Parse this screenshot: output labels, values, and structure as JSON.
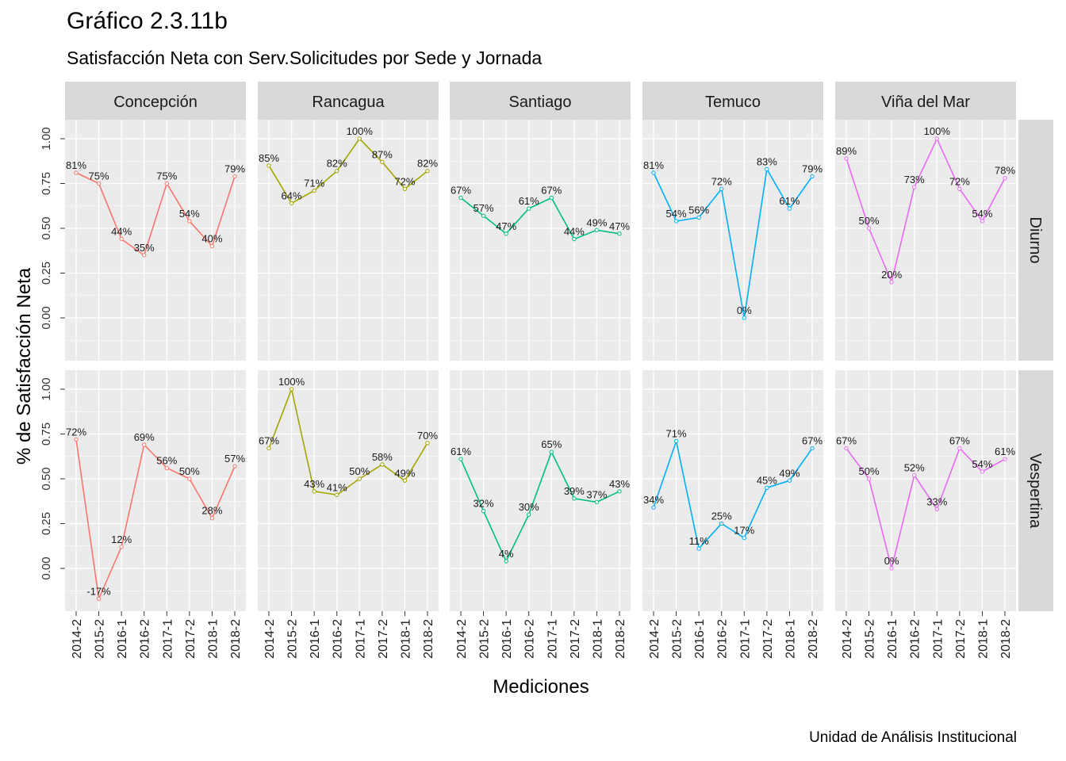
{
  "title": "Gráfico 2.3.11b",
  "subtitle": "Satisfacción Neta con Serv.Solicitudes por Sede y Jornada",
  "caption": "Unidad de Análisis Institucional",
  "chart_data": {
    "type": "line",
    "xlabel": "Mediciones",
    "ylabel": "% de Satisfacción Neta",
    "ylim": [
      -0.17,
      1.0
    ],
    "y_ticks": [
      "0.00",
      "0.25",
      "0.50",
      "0.75",
      "1.00"
    ],
    "y_tick_values": [
      0,
      0.25,
      0.5,
      0.75,
      1.0
    ],
    "categories": [
      "2014-2",
      "2015-2",
      "2016-1",
      "2016-2",
      "2017-1",
      "2017-2",
      "2018-1",
      "2018-2"
    ],
    "columns": [
      "Concepción",
      "Rancagua",
      "Santiago",
      "Temuco",
      "Viña del Mar"
    ],
    "rows": [
      "Diurno",
      "Vespertina"
    ],
    "colors": {
      "Concepción": "#F8766D",
      "Rancagua": "#A3A500",
      "Santiago": "#00BF7D",
      "Temuco": "#00B0F6",
      "Viña del Mar": "#E76BF3"
    },
    "grid": true,
    "panel_background": "#EBEBEB",
    "strip_background": "#D9D9D9",
    "series": [
      {
        "sede": "Concepción",
        "jornada": "Diurno",
        "values": [
          0.81,
          0.75,
          0.44,
          0.35,
          0.75,
          0.54,
          0.4,
          0.79
        ],
        "labels": [
          "81%",
          "75%",
          "44%",
          "35%",
          "75%",
          "54%",
          "40%",
          "79%"
        ]
      },
      {
        "sede": "Rancagua",
        "jornada": "Diurno",
        "values": [
          0.85,
          0.64,
          0.71,
          0.82,
          1.0,
          0.87,
          0.72,
          0.82
        ],
        "labels": [
          "85%",
          "64%",
          "71%",
          "82%",
          "100%",
          "87%",
          "72%",
          "82%"
        ]
      },
      {
        "sede": "Santiago",
        "jornada": "Diurno",
        "values": [
          0.67,
          0.57,
          0.47,
          0.61,
          0.67,
          0.44,
          0.49,
          0.47
        ],
        "labels": [
          "67%",
          "57%",
          "47%",
          "61%",
          "67%",
          "44%",
          "49%",
          "47%"
        ]
      },
      {
        "sede": "Temuco",
        "jornada": "Diurno",
        "values": [
          0.81,
          0.54,
          0.56,
          0.72,
          0.0,
          0.83,
          0.61,
          0.79
        ],
        "labels": [
          "81%",
          "54%",
          "56%",
          "72%",
          "0%",
          "83%",
          "61%",
          "79%"
        ]
      },
      {
        "sede": "Viña del Mar",
        "jornada": "Diurno",
        "values": [
          0.89,
          0.5,
          0.2,
          0.73,
          1.0,
          0.72,
          0.54,
          0.78
        ],
        "labels": [
          "89%",
          "50%",
          "20%",
          "73%",
          "100%",
          "72%",
          "54%",
          "78%"
        ]
      },
      {
        "sede": "Concepción",
        "jornada": "Vespertina",
        "values": [
          0.72,
          -0.17,
          0.12,
          0.69,
          0.56,
          0.5,
          0.28,
          0.57
        ],
        "labels": [
          "72%",
          "-17%",
          "12%",
          "69%",
          "56%",
          "50%",
          "28%",
          "57%"
        ]
      },
      {
        "sede": "Rancagua",
        "jornada": "Vespertina",
        "values": [
          0.67,
          1.0,
          0.43,
          0.41,
          0.5,
          0.58,
          0.49,
          0.7
        ],
        "labels": [
          "67%",
          "100%",
          "43%",
          "41%",
          "50%",
          "58%",
          "49%",
          "70%"
        ]
      },
      {
        "sede": "Santiago",
        "jornada": "Vespertina",
        "values": [
          0.61,
          0.32,
          0.04,
          0.3,
          0.65,
          0.39,
          0.37,
          0.43
        ],
        "labels": [
          "61%",
          "32%",
          "4%",
          "30%",
          "65%",
          "39%",
          "37%",
          "43%"
        ]
      },
      {
        "sede": "Temuco",
        "jornada": "Vespertina",
        "values": [
          0.34,
          0.71,
          0.11,
          0.25,
          0.17,
          0.45,
          0.49,
          0.67
        ],
        "labels": [
          "34%",
          "71%",
          "11%",
          "25%",
          "17%",
          "45%",
          "49%",
          "67%"
        ]
      },
      {
        "sede": "Viña del Mar",
        "jornada": "Vespertina",
        "values": [
          0.67,
          0.5,
          0.0,
          0.52,
          0.33,
          0.67,
          0.54,
          0.61
        ],
        "labels": [
          "67%",
          "50%",
          "0%",
          "52%",
          "33%",
          "67%",
          "54%",
          "61%"
        ]
      }
    ]
  }
}
